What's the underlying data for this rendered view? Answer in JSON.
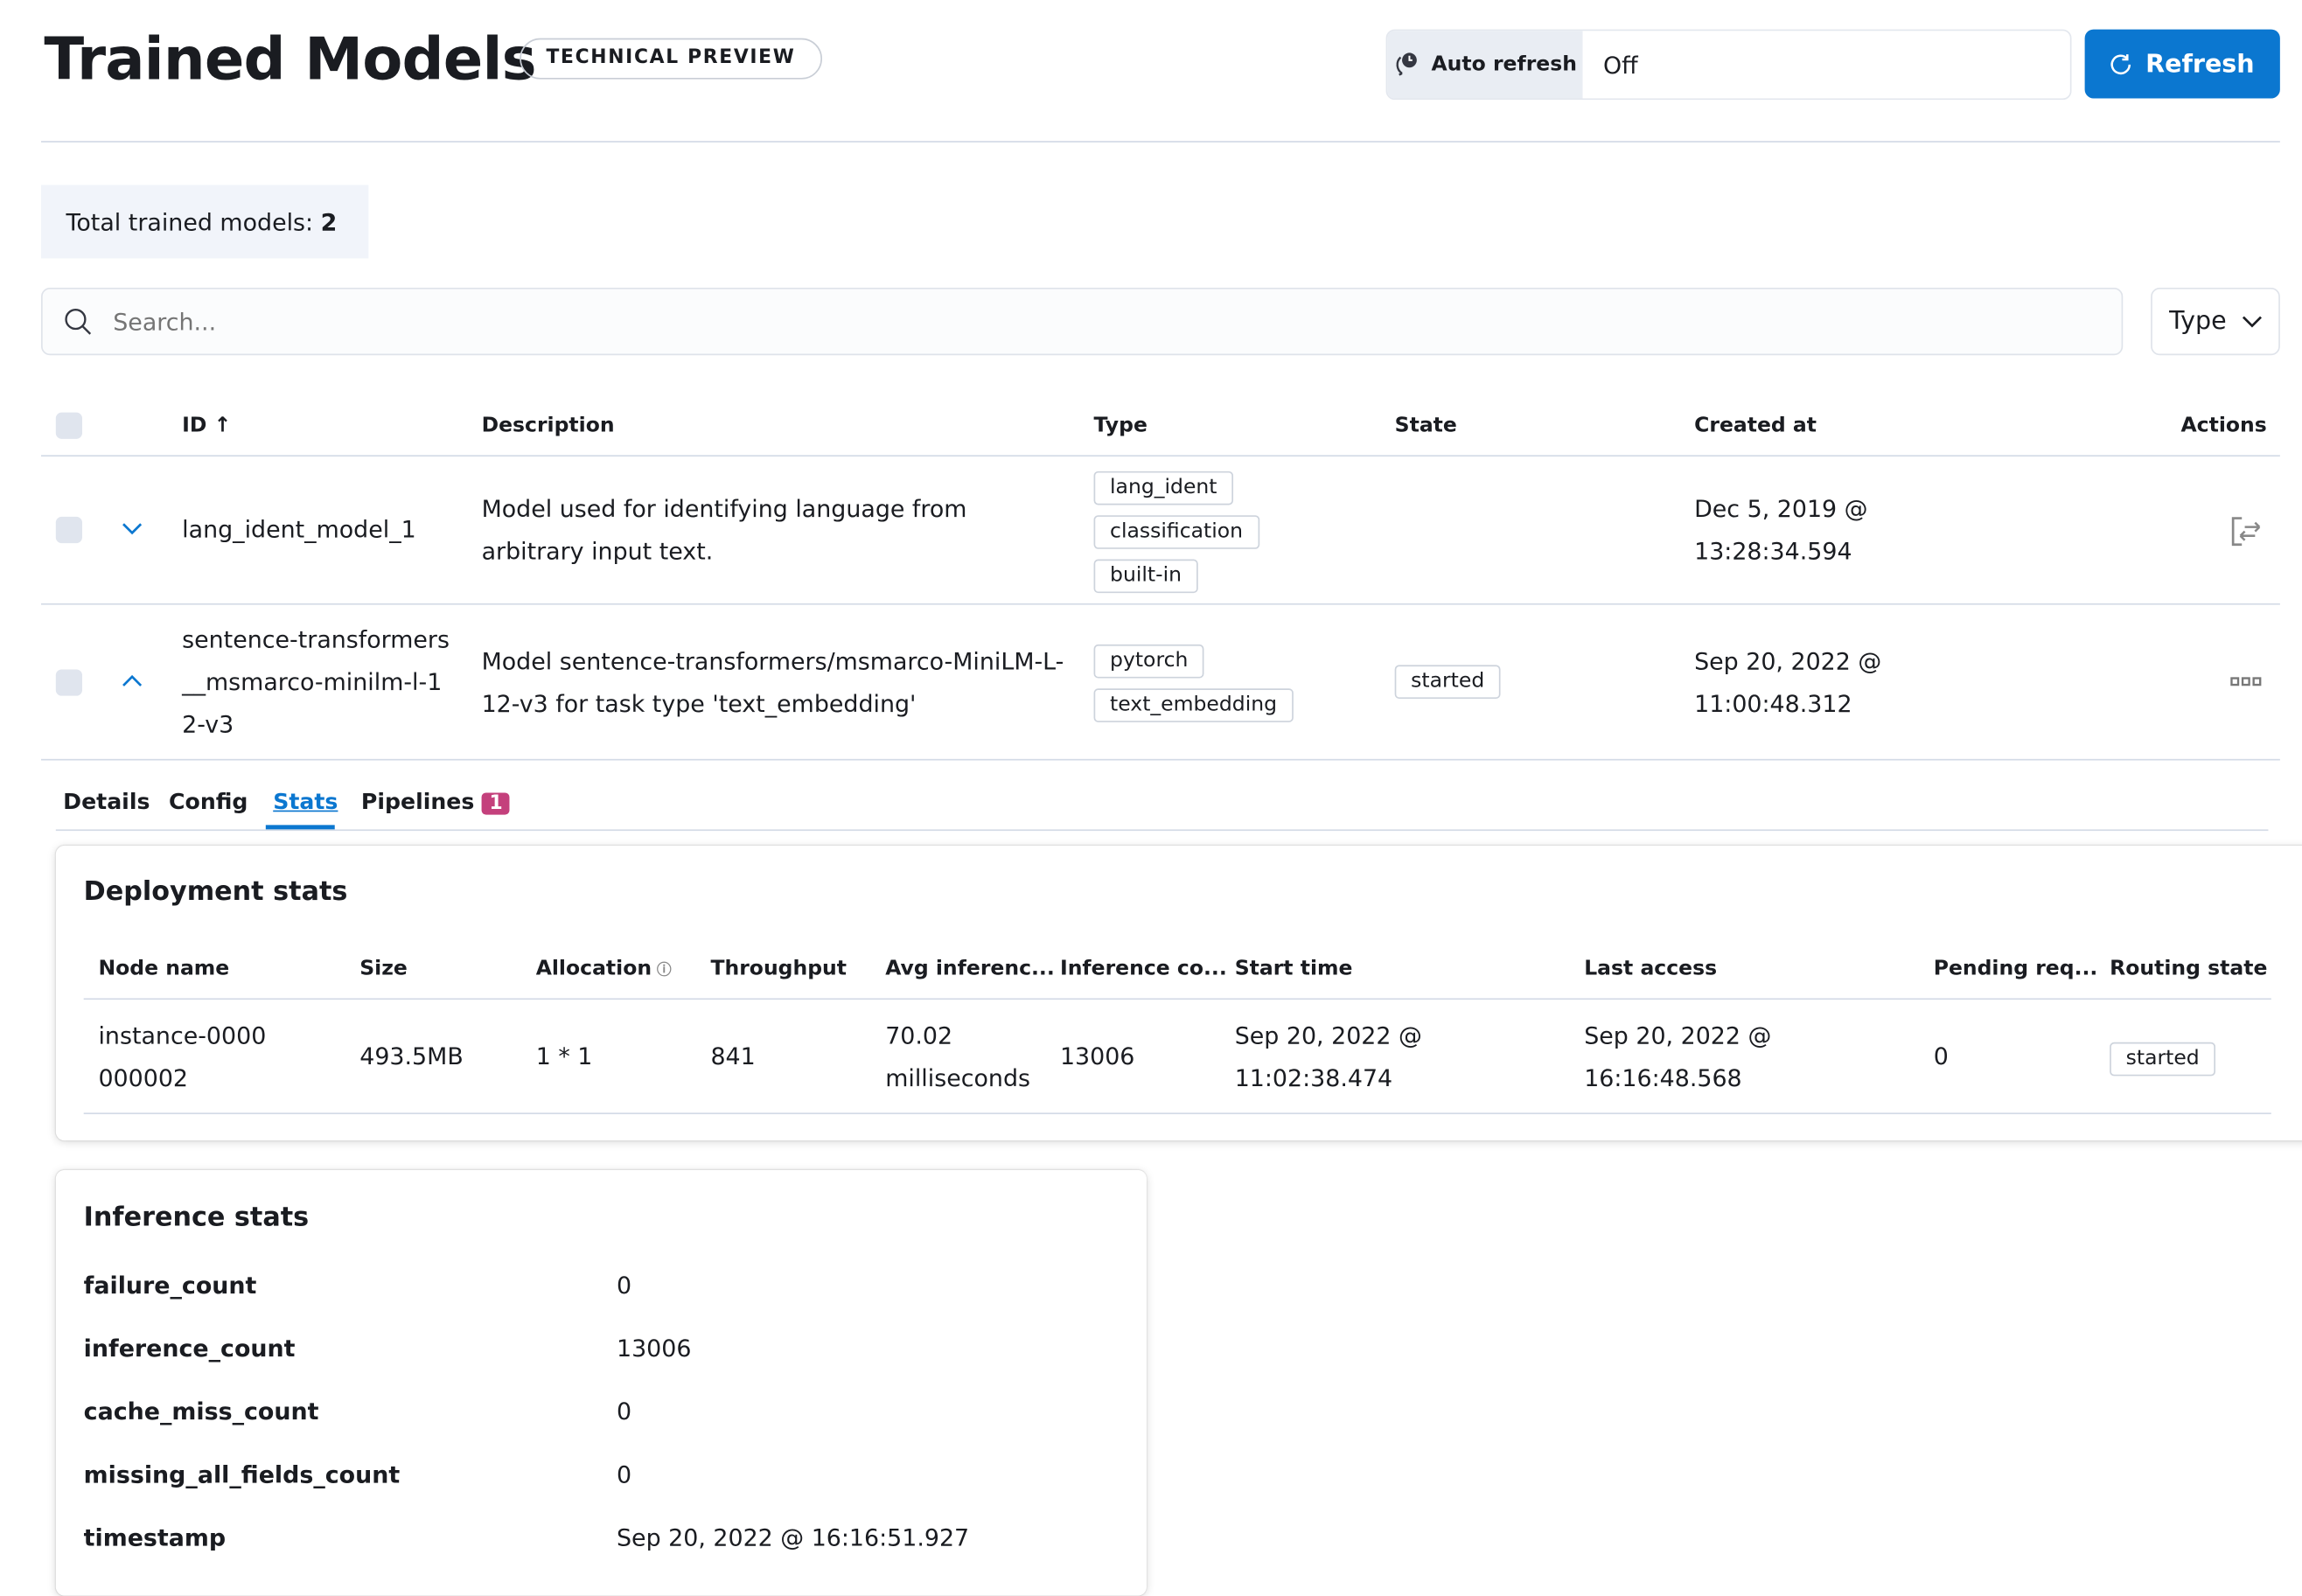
{
  "header": {
    "title": "Trained Models",
    "badge": "TECHNICAL PREVIEW",
    "auto_refresh_label": "Auto refresh",
    "auto_refresh_value": "Off",
    "refresh_label": "Refresh",
    "accent": "#0b77d0"
  },
  "summary": {
    "label": "Total trained models:",
    "count": "2"
  },
  "search": {
    "placeholder": "Search...",
    "type_filter": "Type"
  },
  "table": {
    "columns": [
      "ID",
      "Description",
      "Type",
      "State",
      "Created at",
      "Actions"
    ],
    "rows": [
      {
        "id": "lang_ident_model_1",
        "description": "Model used for identifying language from arbitrary input text.",
        "types": [
          "lang_ident",
          "classification",
          "built-in"
        ],
        "state": "",
        "created": "Dec 5, 2019 @ 13:28:34.594",
        "expanded": false
      },
      {
        "id": "sentence-transformers__msmarco-minilm-l-12-v3",
        "description": "Model sentence-transformers/msmarco-MiniLM-L-12-v3 for task type 'text_embedding'",
        "types": [
          "pytorch",
          "text_embedding"
        ],
        "state": "started",
        "created": "Sep 20, 2022 @ 11:00:48.312",
        "expanded": true
      }
    ]
  },
  "tabs": [
    {
      "label": "Details"
    },
    {
      "label": "Config"
    },
    {
      "label": "Stats",
      "active": true
    },
    {
      "label": "Pipelines",
      "count": "1"
    }
  ],
  "deployment": {
    "title": "Deployment stats",
    "columns": [
      "Node name",
      "Size",
      "Allocation",
      "Throughput",
      "Avg inferenc...",
      "Inference co...",
      "Start time",
      "Last access",
      "Pending req...",
      "Routing state"
    ],
    "row": {
      "node": "instance-0000000002",
      "size": "493.5MB",
      "allocation": "1 * 1",
      "throughput": "841",
      "avg": "70.02 milliseconds",
      "count": "13006",
      "start": "Sep 20, 2022 @ 11:02:38.474",
      "last": "Sep 20, 2022 @ 16:16:48.568",
      "pending": "0",
      "routing": "started"
    }
  },
  "inference": {
    "title": "Inference stats",
    "items": [
      {
        "key": "failure_count",
        "value": "0"
      },
      {
        "key": "inference_count",
        "value": "13006"
      },
      {
        "key": "cache_miss_count",
        "value": "0"
      },
      {
        "key": "missing_all_fields_count",
        "value": "0"
      },
      {
        "key": "timestamp",
        "value": "Sep 20, 2022 @ 16:16:51.927"
      }
    ]
  }
}
